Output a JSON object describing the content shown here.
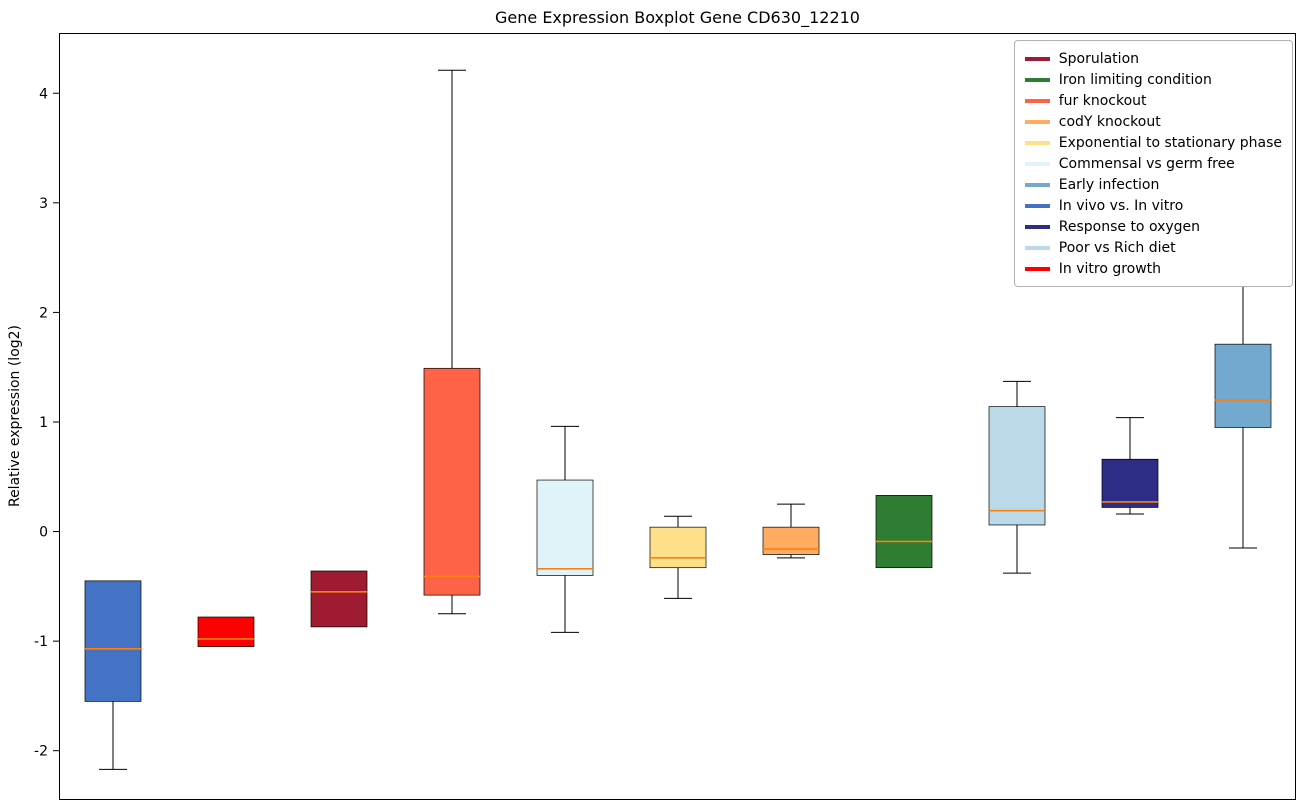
{
  "chart_data": {
    "type": "boxplot",
    "title": "Gene Expression Boxplot Gene CD630_12210",
    "ylabel": "Relative expression (log2)",
    "xlabel": "",
    "ylim": [
      -2.45,
      4.55
    ],
    "yticks": [
      -2,
      -1,
      0,
      1,
      2,
      3,
      4
    ],
    "grid": false,
    "legend_position": "upper right",
    "median_color": "#ff7f0e",
    "box_edge_color": "#000000",
    "legend": [
      {
        "label": "Sporulation",
        "color": "#9e1b32"
      },
      {
        "label": "Iron limiting condition",
        "color": "#2e7d32"
      },
      {
        "label": "fur knockout",
        "color": "#ff6347"
      },
      {
        "label": "codY knockout",
        "color": "#ffab61"
      },
      {
        "label": "Exponential to stationary phase",
        "color": "#fee08b"
      },
      {
        "label": "Commensal vs germ free",
        "color": "#e0f3f8"
      },
      {
        "label": "Early infection",
        "color": "#74a9cf"
      },
      {
        "label": "In vivo vs. In vitro",
        "color": "#4472c4"
      },
      {
        "label": "Response to oxygen",
        "color": "#2d2d86"
      },
      {
        "label": "Poor vs Rich diet",
        "color": "#bcd9ea"
      },
      {
        "label": "In vitro growth",
        "color": "#ff0000"
      }
    ],
    "boxes": [
      {
        "label": "In vivo vs. In vitro",
        "color": "#4472c4",
        "whisker_low": -2.17,
        "q1": -1.55,
        "median": -1.07,
        "q3": -0.45,
        "whisker_high": -0.45
      },
      {
        "label": "In vitro growth",
        "color": "#ff0000",
        "whisker_low": -1.05,
        "q1": -1.05,
        "median": -0.98,
        "q3": -0.78,
        "whisker_high": -0.78
      },
      {
        "label": "Sporulation",
        "color": "#9e1b32",
        "whisker_low": -0.87,
        "q1": -0.87,
        "median": -0.55,
        "q3": -0.36,
        "whisker_high": -0.36
      },
      {
        "label": "fur knockout",
        "color": "#ff6347",
        "whisker_low": -0.75,
        "q1": -0.58,
        "median": -0.41,
        "q3": 1.49,
        "whisker_high": 4.21
      },
      {
        "label": "Commensal vs germ free",
        "color": "#e0f3f8",
        "whisker_low": -0.92,
        "q1": -0.4,
        "median": -0.34,
        "q3": 0.47,
        "whisker_high": 0.96
      },
      {
        "label": "Exponential to stationary phase",
        "color": "#fee08b",
        "whisker_low": -0.61,
        "q1": -0.33,
        "median": -0.24,
        "q3": 0.04,
        "whisker_high": 0.14
      },
      {
        "label": "codY knockout",
        "color": "#ffab61",
        "whisker_low": -0.24,
        "q1": -0.21,
        "median": -0.16,
        "q3": 0.04,
        "whisker_high": 0.25
      },
      {
        "label": "Iron limiting condition",
        "color": "#2e7d32",
        "whisker_low": -0.33,
        "q1": -0.33,
        "median": -0.09,
        "q3": 0.33,
        "whisker_high": 0.33
      },
      {
        "label": "Poor vs Rich diet",
        "color": "#bcd9ea",
        "whisker_low": -0.38,
        "q1": 0.06,
        "median": 0.19,
        "q3": 1.14,
        "whisker_high": 1.37
      },
      {
        "label": "Response to oxygen",
        "color": "#2d2d86",
        "whisker_low": 0.16,
        "q1": 0.22,
        "median": 0.27,
        "q3": 0.66,
        "whisker_high": 1.04
      },
      {
        "label": "Early infection",
        "color": "#74a9cf",
        "whisker_low": -0.15,
        "q1": 0.95,
        "median": 1.2,
        "q3": 1.71,
        "whisker_high": 2.31
      }
    ]
  }
}
